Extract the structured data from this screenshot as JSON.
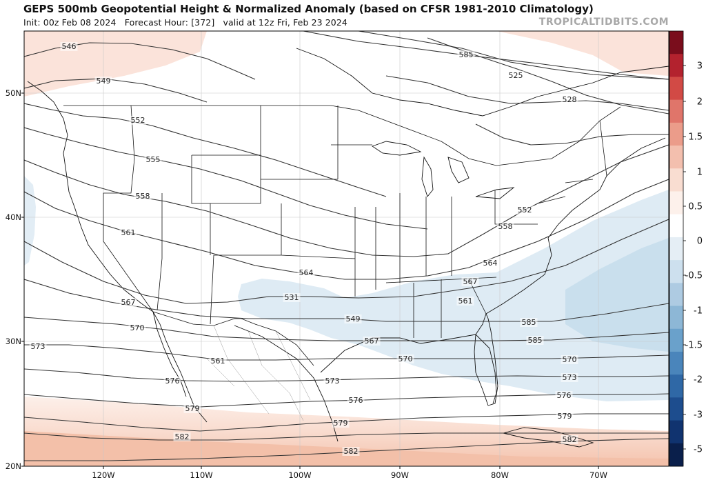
{
  "header": {
    "title": "GEPS 500mb Geopotential Height & Normalized Anomaly (based on CFSR 1981-2010 Climatology)",
    "init": "Init: 00z Feb 08 2024",
    "forecast_hour": "Forecast Hour: [372]",
    "valid": "valid at 12z Fri, Feb 23 2024",
    "watermark": "TROPICALTIDBITS.COM"
  },
  "axes": {
    "lat_labels": [
      "50N",
      "40N",
      "30N",
      "20N"
    ],
    "lon_labels": [
      "120W",
      "110W",
      "100W",
      "90W",
      "80W",
      "70W"
    ]
  },
  "colorbar": {
    "ticks": [
      "3",
      "2",
      "1.5",
      "1",
      "0.5",
      "0",
      "-0.5",
      "-1",
      "-1.5",
      "-2",
      "-3",
      "-5"
    ],
    "colors_top_to_bottom": [
      "#7a0d1c",
      "#b3222e",
      "#d24a45",
      "#e0756a",
      "#eb9c8a",
      "#f3bfae",
      "#f9ddd1",
      "#fdf1eb",
      "#ffffff",
      "#e5eef5",
      "#cde0ee",
      "#aecbe2",
      "#8db7d6",
      "#6aa1cb",
      "#4a85bb",
      "#2f68a6",
      "#1d4d8e",
      "#10336f",
      "#0a1f4b"
    ]
  },
  "contour_labels": [
    "546",
    "549",
    "552",
    "555",
    "558",
    "561",
    "567",
    "570",
    "573",
    "576",
    "579",
    "582",
    "585",
    "525",
    "528",
    "531",
    "564",
    "561",
    "564",
    "558",
    "552",
    "549",
    "567",
    "570",
    "573",
    "576",
    "579",
    "582",
    "585",
    "570",
    "573",
    "576",
    "579",
    "582",
    "585",
    "567",
    "561"
  ],
  "anomaly_colors": {
    "positive": "#f7d3c7",
    "negative": "#cfe3ef",
    "negative_strong": "#b9d5e8"
  }
}
